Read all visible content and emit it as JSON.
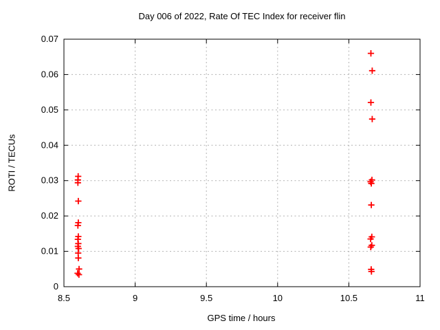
{
  "window": {
    "background": "#ffffff"
  },
  "chart_data": {
    "type": "scatter",
    "title": "Day 006 of 2022, Rate Of TEC Index for receiver flin",
    "xlabel": "GPS time / hours",
    "ylabel": "ROTI / TECUs",
    "xlim": [
      8.5,
      11
    ],
    "ylim": [
      0,
      0.07
    ],
    "x_ticks": [
      {
        "v": 8.5,
        "label": "8.5"
      },
      {
        "v": 9,
        "label": "9"
      },
      {
        "v": 9.5,
        "label": "9.5"
      },
      {
        "v": 10,
        "label": "10"
      },
      {
        "v": 10.5,
        "label": "10.5"
      },
      {
        "v": 11,
        "label": "11"
      }
    ],
    "y_ticks": [
      {
        "v": 0,
        "label": "0"
      },
      {
        "v": 0.01,
        "label": "0.01"
      },
      {
        "v": 0.02,
        "label": "0.02"
      },
      {
        "v": 0.03,
        "label": "0.03"
      },
      {
        "v": 0.04,
        "label": "0.04"
      },
      {
        "v": 0.05,
        "label": "0.05"
      },
      {
        "v": 0.06,
        "label": "0.06"
      },
      {
        "v": 0.07,
        "label": "0.07"
      }
    ],
    "grid": "dotted",
    "grid_color": "#b0b0b0",
    "axis_color": "#000000",
    "legend": "none",
    "series": [
      {
        "name": "ROTI",
        "marker": "plus",
        "color": "#ff0000",
        "points": [
          [
            8.6,
            0.0312
          ],
          [
            8.598,
            0.0302
          ],
          [
            8.598,
            0.0294
          ],
          [
            8.601,
            0.0242
          ],
          [
            8.601,
            0.0181
          ],
          [
            8.598,
            0.0173
          ],
          [
            8.601,
            0.0142
          ],
          [
            8.598,
            0.0134
          ],
          [
            8.601,
            0.0122
          ],
          [
            8.598,
            0.0114
          ],
          [
            8.603,
            0.0108
          ],
          [
            8.6,
            0.0095
          ],
          [
            8.601,
            0.0081
          ],
          [
            8.606,
            0.005
          ],
          [
            8.596,
            0.0038
          ],
          [
            8.605,
            0.0034
          ],
          [
            10.655,
            0.066
          ],
          [
            10.664,
            0.0611
          ],
          [
            10.655,
            0.0521
          ],
          [
            10.664,
            0.0474
          ],
          [
            10.662,
            0.0302
          ],
          [
            10.653,
            0.0297
          ],
          [
            10.658,
            0.0292
          ],
          [
            10.658,
            0.0231
          ],
          [
            10.661,
            0.0141
          ],
          [
            10.653,
            0.0135
          ],
          [
            10.661,
            0.0117
          ],
          [
            10.654,
            0.0112
          ],
          [
            10.657,
            0.0049
          ],
          [
            10.659,
            0.0043
          ]
        ]
      }
    ]
  }
}
